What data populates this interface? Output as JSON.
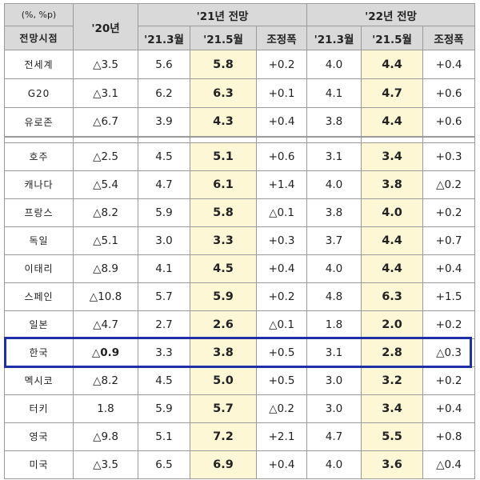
{
  "header": {
    "unit": "(%, %p)",
    "view_label": "전망시점",
    "col_2020": "'20년",
    "group_2021": "'21년 전망",
    "group_2022": "'22년 전망",
    "sub_mar": "'21.3월",
    "sub_may": "'21.5월",
    "sub_adj": "조정폭",
    "sub_mar22": "'21.3월",
    "sub_may22": "'21.5월",
    "sub_adj22": "조정폭"
  },
  "group1": [
    {
      "name": "전세계",
      "y20": "△3.5",
      "m21": "5.6",
      "may21": "5.8",
      "adj21": "+0.2",
      "m22": "4.0",
      "may22": "4.4",
      "adj22": "+0.4"
    },
    {
      "name": "G20",
      "y20": "△3.1",
      "m21": "6.2",
      "may21": "6.3",
      "adj21": "+0.1",
      "m22": "4.1",
      "may22": "4.7",
      "adj22": "+0.6"
    },
    {
      "name": "유로존",
      "y20": "△6.7",
      "m21": "3.9",
      "may21": "4.3",
      "adj21": "+0.4",
      "m22": "3.8",
      "may22": "4.4",
      "adj22": "+0.6"
    }
  ],
  "group2": [
    {
      "name": "호주",
      "y20": "△2.5",
      "m21": "4.5",
      "may21": "5.1",
      "adj21": "+0.6",
      "m22": "3.1",
      "may22": "3.4",
      "adj22": "+0.3"
    },
    {
      "name": "캐나다",
      "y20": "△5.4",
      "m21": "4.7",
      "may21": "6.1",
      "adj21": "+1.4",
      "m22": "4.0",
      "may22": "3.8",
      "adj22": "△0.2"
    },
    {
      "name": "프랑스",
      "y20": "△8.2",
      "m21": "5.9",
      "may21": "5.8",
      "adj21": "△0.1",
      "m22": "3.8",
      "may22": "4.0",
      "adj22": "+0.2"
    },
    {
      "name": "독일",
      "y20": "△5.1",
      "m21": "3.0",
      "may21": "3.3",
      "adj21": "+0.3",
      "m22": "3.7",
      "may22": "4.4",
      "adj22": "+0.7"
    },
    {
      "name": "이태리",
      "y20": "△8.9",
      "m21": "4.1",
      "may21": "4.5",
      "adj21": "+0.4",
      "m22": "4.0",
      "may22": "4.4",
      "adj22": "+0.4"
    },
    {
      "name": "스페인",
      "y20": "△10.8",
      "m21": "5.7",
      "may21": "5.9",
      "adj21": "+0.2",
      "m22": "4.8",
      "may22": "6.3",
      "adj22": "+1.5"
    },
    {
      "name": "일본",
      "y20": "△4.7",
      "m21": "2.7",
      "may21": "2.6",
      "adj21": "△0.1",
      "m22": "1.8",
      "may22": "2.0",
      "adj22": "+0.2"
    },
    {
      "name": "한국",
      "y20": "△0.9",
      "m21": "3.3",
      "may21": "3.8",
      "adj21": "+0.5",
      "m22": "3.1",
      "may22": "2.8",
      "adj22": "△0.3"
    },
    {
      "name": "멕시코",
      "y20": "△8.2",
      "m21": "4.5",
      "may21": "5.0",
      "adj21": "+0.5",
      "m22": "3.0",
      "may22": "3.2",
      "adj22": "+0.2"
    },
    {
      "name": "터키",
      "y20": "1.8",
      "m21": "5.9",
      "may21": "5.7",
      "adj21": "△0.2",
      "m22": "3.0",
      "may22": "3.4",
      "adj22": "+0.4"
    },
    {
      "name": "영국",
      "y20": "△9.8",
      "m21": "5.1",
      "may21": "7.2",
      "adj21": "+2.1",
      "m22": "4.7",
      "may22": "5.5",
      "adj22": "+0.8"
    },
    {
      "name": "미국",
      "y20": "△3.5",
      "m21": "6.5",
      "may21": "6.9",
      "adj21": "+0.4",
      "m22": "4.0",
      "may22": "3.6",
      "adj22": "△0.4"
    }
  ],
  "colors": {
    "header_bg": "#d9d9d9",
    "highlight_bg": "#fdf7d6",
    "korea_box": "#1f2fa6"
  }
}
